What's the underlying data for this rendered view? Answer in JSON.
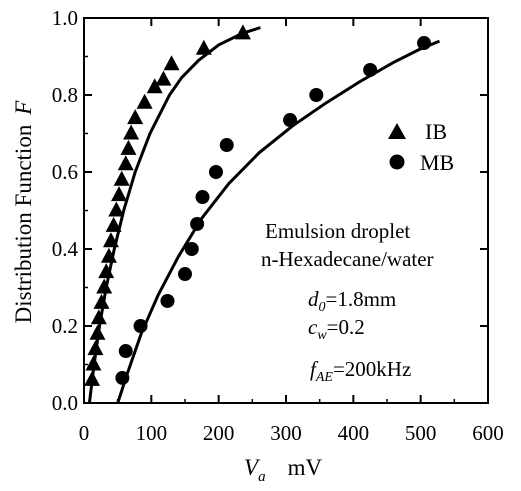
{
  "chart_data": {
    "type": "scatter",
    "xlabel": {
      "symbol": "V",
      "subscript": "a",
      "unit": "mV"
    },
    "ylabel": {
      "text": "Distribution Function",
      "symbol": "F"
    },
    "xlim": [
      0,
      600
    ],
    "ylim": [
      0,
      1.0
    ],
    "x_ticks": [
      "0",
      "100",
      "200",
      "300",
      "400",
      "500",
      "600"
    ],
    "y_ticks": [
      "0.0",
      "0.2",
      "0.4",
      "0.6",
      "0.8",
      "1.0"
    ],
    "legend_position": "right-middle",
    "grid": false,
    "series": [
      {
        "name": "IB",
        "marker": "triangle",
        "points": [
          [
            12,
            0.06
          ],
          [
            14,
            0.1
          ],
          [
            17,
            0.14
          ],
          [
            20,
            0.18
          ],
          [
            22,
            0.22
          ],
          [
            26,
            0.26
          ],
          [
            30,
            0.3
          ],
          [
            33,
            0.34
          ],
          [
            37,
            0.38
          ],
          [
            40,
            0.42
          ],
          [
            44,
            0.46
          ],
          [
            48,
            0.5
          ],
          [
            52,
            0.54
          ],
          [
            56,
            0.58
          ],
          [
            62,
            0.62
          ],
          [
            66,
            0.66
          ],
          [
            70,
            0.7
          ],
          [
            76,
            0.74
          ],
          [
            90,
            0.78
          ],
          [
            105,
            0.82
          ],
          [
            118,
            0.84
          ],
          [
            130,
            0.88
          ],
          [
            178,
            0.92
          ],
          [
            236,
            0.96
          ]
        ],
        "fit": [
          [
            8,
            0
          ],
          [
            15,
            0.1
          ],
          [
            23,
            0.2
          ],
          [
            33,
            0.3
          ],
          [
            45,
            0.4
          ],
          [
            59,
            0.5
          ],
          [
            76,
            0.6
          ],
          [
            98,
            0.7
          ],
          [
            127,
            0.8
          ],
          [
            145,
            0.845
          ],
          [
            170,
            0.89
          ],
          [
            200,
            0.93
          ],
          [
            235,
            0.96
          ],
          [
            262,
            0.975
          ]
        ]
      },
      {
        "name": "MB",
        "marker": "circle",
        "points": [
          [
            57,
            0.065
          ],
          [
            62,
            0.135
          ],
          [
            84,
            0.2
          ],
          [
            124,
            0.265
          ],
          [
            150,
            0.335
          ],
          [
            160,
            0.4
          ],
          [
            168,
            0.465
          ],
          [
            176,
            0.535
          ],
          [
            196,
            0.6
          ],
          [
            212,
            0.67
          ],
          [
            306,
            0.735
          ],
          [
            345,
            0.8
          ],
          [
            425,
            0.865
          ],
          [
            505,
            0.935
          ]
        ],
        "fit": [
          [
            50,
            0
          ],
          [
            65,
            0.08
          ],
          [
            85,
            0.18
          ],
          [
            110,
            0.28
          ],
          [
            140,
            0.38
          ],
          [
            175,
            0.48
          ],
          [
            215,
            0.57
          ],
          [
            260,
            0.65
          ],
          [
            310,
            0.72
          ],
          [
            360,
            0.78
          ],
          [
            410,
            0.835
          ],
          [
            460,
            0.885
          ],
          [
            500,
            0.92
          ],
          [
            528,
            0.94
          ]
        ]
      }
    ],
    "annotations": {
      "sample_line1": "Emulsion droplet",
      "sample_line2": "n-Hexadecane/water",
      "d0": {
        "symbol": "d",
        "subscript": "0",
        "value": "=1.8mm"
      },
      "cw": {
        "symbol": "c",
        "subscript": "w",
        "value": "=0.2"
      },
      "fae": {
        "symbol": "f",
        "subscript": "AE",
        "value": "=200kHz"
      }
    }
  }
}
